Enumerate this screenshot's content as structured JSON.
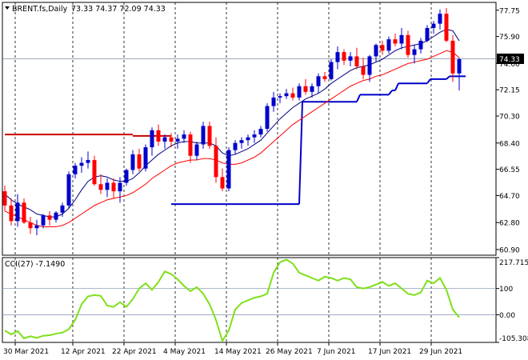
{
  "chart_data": [
    {
      "type": "candlestick",
      "symbol_label": "BRENT.fs,Daily",
      "ohlc_label": "73.33 74.37 72.09 74.33",
      "last_price": "74.33",
      "ylim": [
        60.5,
        78.3
      ],
      "y_ticks": [
        "77.75",
        "75.90",
        "74.00",
        "72.15",
        "70.30",
        "68.40",
        "66.55",
        "64.70",
        "62.80",
        "60.90"
      ],
      "x_labels": [
        "30 Mar 2021",
        "12 Apr 2021",
        "22 Apr 2021",
        "4 May 2021",
        "14 May 2021",
        "26 May 2021",
        "7 Jun 2021",
        "17 Jun 2021",
        "29 Jun 2021"
      ],
      "x_label_index": [
        0,
        9,
        17,
        25,
        33,
        41,
        49,
        57,
        65
      ],
      "colors": {
        "bull": "#0000cc",
        "bear": "#ff0000",
        "ma_fast": "#000080",
        "ma_slow": "#ff0000",
        "support": "#0000cc",
        "resistance": "#cc0000",
        "cci": "#7fe01a",
        "last_price_bg": "#000000"
      },
      "candles": [
        [
          65.0,
          65.4,
          63.6,
          64.0
        ],
        [
          64.0,
          64.5,
          62.6,
          62.9
        ],
        [
          62.9,
          64.8,
          62.5,
          64.2
        ],
        [
          64.2,
          64.5,
          62.7,
          62.8
        ],
        [
          62.8,
          63.2,
          62.0,
          62.4
        ],
        [
          62.4,
          63.0,
          61.9,
          62.6
        ],
        [
          62.6,
          63.4,
          62.4,
          63.3
        ],
        [
          63.3,
          63.6,
          62.6,
          63.0
        ],
        [
          63.0,
          63.6,
          62.8,
          63.5
        ],
        [
          63.5,
          64.2,
          63.2,
          64.0
        ],
        [
          64.0,
          66.4,
          63.8,
          66.2
        ],
        [
          66.2,
          67.0,
          65.9,
          66.8
        ],
        [
          66.8,
          67.4,
          66.3,
          67.0
        ],
        [
          67.0,
          67.8,
          66.6,
          67.2
        ],
        [
          67.2,
          67.5,
          65.4,
          65.5
        ],
        [
          65.5,
          66.2,
          64.8,
          65.1
        ],
        [
          65.1,
          65.9,
          64.6,
          65.6
        ],
        [
          65.6,
          65.9,
          64.5,
          65.0
        ],
        [
          65.0,
          66.0,
          64.2,
          65.6
        ],
        [
          65.6,
          66.6,
          65.4,
          66.5
        ],
        [
          66.5,
          67.9,
          66.2,
          67.6
        ],
        [
          67.6,
          68.0,
          66.4,
          66.6
        ],
        [
          66.6,
          68.3,
          66.4,
          68.1
        ],
        [
          68.1,
          69.5,
          67.5,
          69.3
        ],
        [
          69.3,
          69.7,
          68.2,
          68.5
        ],
        [
          68.5,
          69.0,
          68.0,
          68.8
        ],
        [
          68.8,
          69.1,
          68.1,
          68.5
        ],
        [
          68.5,
          69.0,
          68.0,
          68.7
        ],
        [
          68.7,
          69.3,
          68.4,
          69.0
        ],
        [
          69.0,
          69.2,
          67.0,
          67.5
        ],
        [
          67.5,
          68.5,
          67.2,
          68.3
        ],
        [
          68.3,
          69.9,
          68.0,
          69.6
        ],
        [
          69.6,
          69.9,
          68.0,
          68.2
        ],
        [
          68.2,
          68.8,
          65.6,
          66.0
        ],
        [
          66.0,
          66.6,
          65.0,
          65.2
        ],
        [
          65.2,
          68.1,
          65.0,
          67.9
        ],
        [
          67.9,
          68.6,
          67.6,
          68.4
        ],
        [
          68.4,
          68.8,
          68.0,
          68.6
        ],
        [
          68.6,
          69.0,
          68.2,
          68.8
        ],
        [
          68.8,
          69.3,
          68.4,
          69.0
        ],
        [
          69.0,
          69.6,
          68.8,
          69.4
        ],
        [
          69.4,
          71.2,
          69.2,
          71.0
        ],
        [
          71.0,
          72.0,
          70.6,
          71.6
        ],
        [
          71.6,
          71.9,
          71.2,
          71.7
        ],
        [
          71.7,
          72.2,
          71.5,
          71.9
        ],
        [
          71.9,
          72.3,
          71.4,
          71.6
        ],
        [
          71.6,
          72.6,
          71.4,
          72.4
        ],
        [
          72.4,
          72.9,
          71.8,
          72.0
        ],
        [
          72.0,
          72.6,
          71.6,
          72.4
        ],
        [
          72.4,
          73.3,
          71.9,
          73.1
        ],
        [
          73.1,
          73.4,
          72.7,
          72.9
        ],
        [
          72.9,
          74.3,
          72.8,
          74.1
        ],
        [
          74.1,
          75.2,
          73.6,
          74.8
        ],
        [
          74.8,
          75.0,
          73.9,
          74.2
        ],
        [
          74.2,
          74.8,
          73.8,
          74.5
        ],
        [
          74.5,
          75.1,
          73.6,
          73.8
        ],
        [
          73.8,
          74.4,
          72.9,
          73.2
        ],
        [
          73.2,
          74.6,
          72.7,
          74.5
        ],
        [
          74.5,
          75.4,
          74.1,
          75.3
        ],
        [
          75.3,
          75.6,
          74.6,
          74.9
        ],
        [
          74.9,
          75.9,
          74.7,
          75.7
        ],
        [
          75.7,
          76.1,
          75.2,
          75.4
        ],
        [
          75.4,
          76.5,
          75.0,
          76.0
        ],
        [
          76.0,
          76.3,
          74.4,
          74.6
        ],
        [
          74.6,
          75.3,
          74.0,
          75.0
        ],
        [
          75.0,
          75.8,
          74.7,
          75.6
        ],
        [
          75.6,
          76.7,
          75.5,
          76.5
        ],
        [
          76.5,
          77.0,
          76.1,
          76.8
        ],
        [
          76.8,
          77.8,
          76.4,
          77.5
        ],
        [
          77.5,
          77.9,
          75.5,
          75.6
        ],
        [
          75.6,
          76.0,
          72.7,
          73.3
        ],
        [
          73.3,
          74.4,
          72.1,
          74.3
        ]
      ],
      "ma_fast": [
        64.8,
        64.4,
        64.1,
        63.9,
        63.7,
        63.4,
        63.3,
        63.2,
        63.2,
        63.4,
        63.8,
        64.4,
        65.1,
        65.7,
        66.0,
        66.1,
        66.0,
        65.8,
        65.7,
        65.7,
        65.9,
        66.3,
        66.8,
        67.2,
        67.6,
        67.9,
        68.2,
        68.4,
        68.5,
        68.5,
        68.4,
        68.4,
        68.4,
        68.2,
        67.7,
        67.5,
        67.6,
        67.8,
        68.0,
        68.3,
        68.6,
        69.1,
        69.6,
        70.1,
        70.5,
        70.9,
        71.2,
        71.5,
        71.7,
        71.9,
        72.2,
        72.6,
        72.9,
        73.2,
        73.5,
        73.7,
        73.8,
        73.9,
        74.1,
        74.3,
        74.6,
        74.9,
        75.1,
        75.2,
        75.3,
        75.4,
        75.6,
        75.9,
        76.2,
        76.4,
        76.3,
        75.6
      ],
      "ma_slow": [
        63.6,
        63.4,
        63.2,
        63.0,
        62.8,
        62.6,
        62.5,
        62.5,
        62.5,
        62.6,
        62.8,
        63.1,
        63.4,
        63.7,
        64.0,
        64.2,
        64.4,
        64.5,
        64.6,
        64.7,
        64.9,
        65.2,
        65.5,
        65.9,
        66.2,
        66.5,
        66.8,
        67.0,
        67.1,
        67.2,
        67.2,
        67.3,
        67.3,
        67.2,
        67.0,
        66.9,
        66.9,
        67.0,
        67.2,
        67.4,
        67.7,
        68.1,
        68.5,
        68.9,
        69.3,
        69.7,
        70.0,
        70.3,
        70.6,
        70.9,
        71.2,
        71.5,
        71.8,
        72.1,
        72.4,
        72.6,
        72.8,
        72.9,
        73.1,
        73.2,
        73.4,
        73.6,
        73.8,
        74.0,
        74.1,
        74.2,
        74.3,
        74.5,
        74.7,
        74.9,
        74.8,
        74.4
      ],
      "support_steps": [
        [
          26,
          46,
          64.1
        ],
        [
          46,
          55,
          71.3
        ],
        [
          55,
          60,
          71.8
        ],
        [
          60,
          61,
          72.1
        ],
        [
          61,
          66,
          72.6
        ],
        [
          66,
          69,
          72.9
        ],
        [
          69,
          72,
          73.1
        ]
      ],
      "resistance_steps": [
        [
          0,
          20,
          69.0
        ],
        [
          20,
          26,
          68.9
        ]
      ],
      "cci_label": "CCI(27) -7.1490",
      "cci_ylim": [
        -105.308,
        217.7155
      ],
      "cci_ticks": [
        "217.7155",
        "100",
        "0.00",
        "-105.308"
      ],
      "cci_values": [
        -60,
        -75,
        -62,
        -90,
        -82,
        -88,
        -80,
        -78,
        -72,
        -68,
        -55,
        -20,
        40,
        70,
        75,
        72,
        35,
        30,
        48,
        30,
        60,
        100,
        120,
        95,
        125,
        165,
        155,
        135,
        110,
        90,
        105,
        80,
        40,
        -20,
        -100,
        -60,
        20,
        45,
        55,
        65,
        70,
        80,
        160,
        200,
        210,
        195,
        160,
        150,
        140,
        130,
        145,
        140,
        130,
        140,
        135,
        105,
        100,
        105,
        115,
        125,
        110,
        120,
        100,
        80,
        75,
        85,
        130,
        120,
        140,
        95,
        20,
        -10
      ]
    }
  ]
}
